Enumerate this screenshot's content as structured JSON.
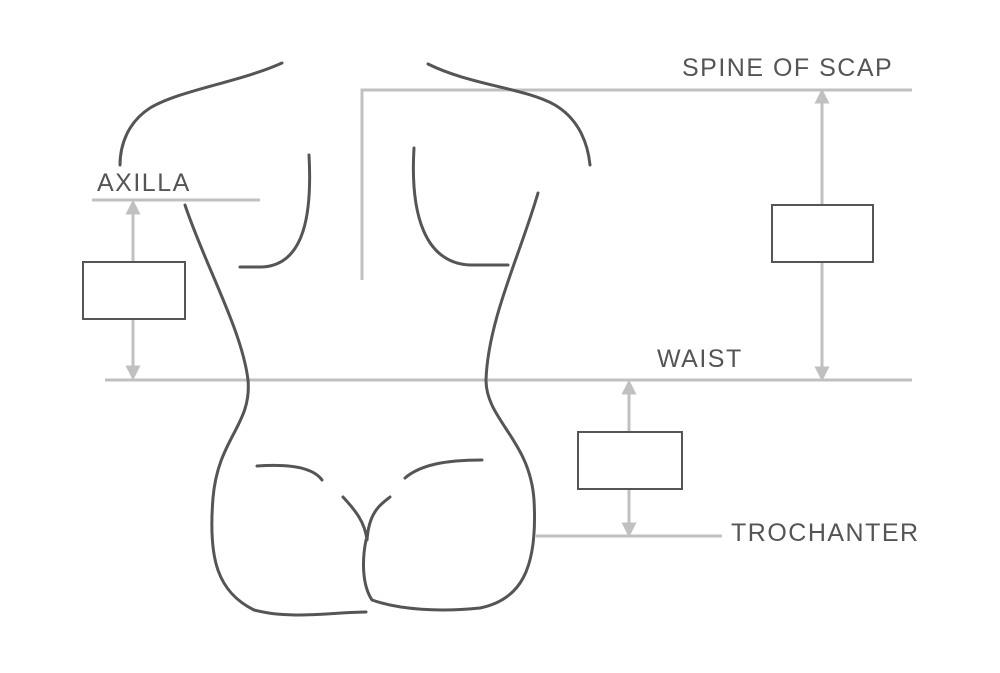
{
  "labels": {
    "spine_of_scap": "SPINE OF SCAP",
    "axilla": "AXILLA",
    "waist": "WAIST",
    "trochanter": "TROCHANTER"
  },
  "measurement_boxes": [
    {
      "id": "axilla-to-waist",
      "value": ""
    },
    {
      "id": "scap-to-waist",
      "value": ""
    },
    {
      "id": "waist-to-trochanter",
      "value": ""
    }
  ],
  "colors": {
    "outline": "#555555",
    "guide": "#c0c0c0",
    "text": "#555555",
    "background": "#ffffff"
  }
}
